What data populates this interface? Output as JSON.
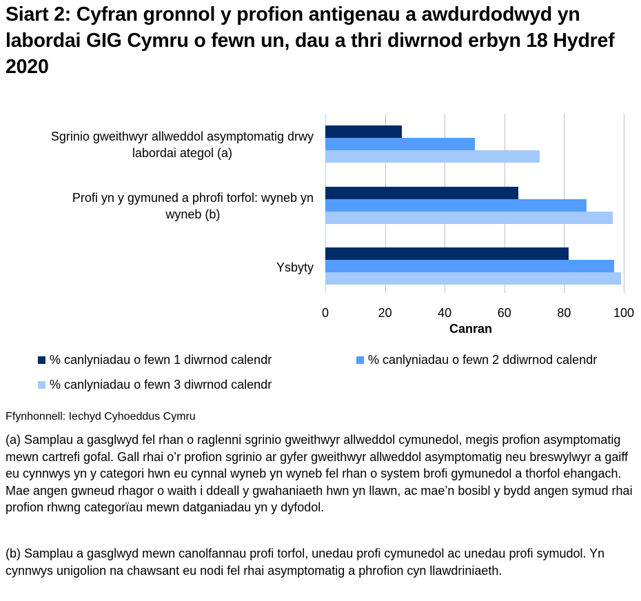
{
  "title": "Siart 2: Cyfran gronnol y profion antigenau a awdurdodwyd yn labordai GIG Cymru o fewn un, dau a thri diwrnod erbyn 18 Hydref 2020",
  "colors": {
    "series1": "#002b66",
    "series2": "#529dfe",
    "series3": "#a3c9fd"
  },
  "chart_data": {
    "type": "bar",
    "orientation": "horizontal",
    "title": "Siart 2: Cyfran gronnol y profion antigenau a awdurdodwyd yn labordai GIG Cymru o fewn un, dau a thri diwrnod erbyn 18 Hydref 2020",
    "categories": [
      "Sgrinio gweithwyr allweddol asymptomatig drwy labordai ategol (a)",
      "Profi yn y gymuned a phrofi torfol: wyneb yn wyneb (b)",
      "Ysbyty"
    ],
    "series": [
      {
        "name": "% canlyniadau o fewn 1 diwrnod calendr",
        "color": "#002b66",
        "values": [
          25.7,
          64.7,
          81.6
        ]
      },
      {
        "name": "% canlyniadau o fewn 2 ddiwrnod calendr",
        "color": "#529dfe",
        "values": [
          50.2,
          87.6,
          96.8
        ]
      },
      {
        "name": "% canlyniadau o fewn 3 diwrnod calendr",
        "color": "#a3c9fd",
        "values": [
          71.9,
          96.4,
          99.1
        ]
      }
    ],
    "xlabel": "Canran",
    "ylabel": "",
    "xlim": [
      0,
      100
    ],
    "xticks": [
      "0",
      "20",
      "40",
      "60",
      "80",
      "100"
    ],
    "grid": true,
    "legend_position": "bottom"
  },
  "categories": {
    "c1_line1": "Sgrinio gweithwyr allweddol asymptomatig drwy",
    "c1_line2": "labordai ategol (a)",
    "c2_line1": "Profi yn y gymuned a phrofi torfol: wyneb yn",
    "c2_line2": "wyneb (b)",
    "c3_line1": "Ysbyty"
  },
  "ticks": [
    "0",
    "20",
    "40",
    "60",
    "80",
    "100"
  ],
  "xlabel": "Canran",
  "legend": [
    "% canlyniadau o fewn 1 diwrnod calendr",
    "% canlyniadau o fewn 2 ddiwrnod calendr",
    "% canlyniadau o fewn 3 diwrnod calendr"
  ],
  "source": "Ffynhonnell: Iechyd Cyhoeddus Cymru",
  "notes": {
    "a": "(a) Samplau a gasglwyd fel rhan o raglenni sgrinio gweithwyr allweddol cymunedol, megis profion asymptomatig mewn cartrefi gofal. Gall rhai o’r profion sgrinio ar gyfer gweithwyr allweddol asymptomatig neu breswylwyr a gaiff eu cynnwys yn y categori hwn eu cynnal wyneb yn wyneb fel rhan o system brofi gymunedol a thorfol ehangach. Mae angen gwneud rhagor o waith i ddeall y gwahaniaeth hwn yn llawn, ac mae’n bosibl y bydd angen symud rhai profion rhwng categorïau mewn datganiadau yn y dyfodol.",
    "b": "(b) Samplau a gasglwyd mewn canolfannau profi torfol, unedau profi cymunedol ac unedau profi symudol. Yn cynnwys unigolion na chawsant eu nodi fel rhai asymptomatig a phrofion cyn llawdriniaeth."
  }
}
